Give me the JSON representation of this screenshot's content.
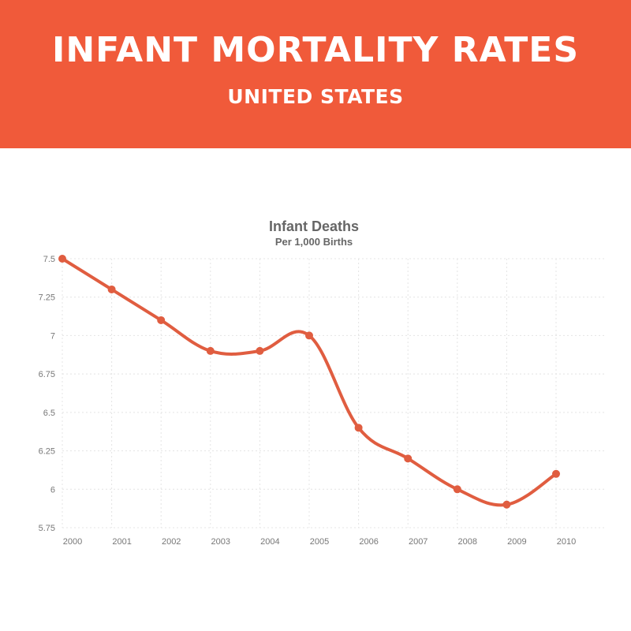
{
  "header": {
    "title": "INFANT MORTALITY RATES",
    "subtitle": "UNITED STATES",
    "background": "#f05a3a"
  },
  "chart_data": {
    "type": "line",
    "title": "Infant Deaths",
    "subtitle": "Per 1,000 Births",
    "xlabel": "",
    "ylabel": "",
    "categories": [
      "2000",
      "2001",
      "2002",
      "2003",
      "2004",
      "2005",
      "2006",
      "2007",
      "2008",
      "2009",
      "2010"
    ],
    "series": [
      {
        "values": [
          7.5,
          7.3,
          7.1,
          6.9,
          6.9,
          7.0,
          6.4,
          6.2,
          6.0,
          5.9,
          6.1
        ],
        "color": "#e05d40"
      }
    ],
    "ylim": [
      5.75,
      7.5
    ],
    "yticks": [
      "7.5",
      "7.25",
      "7",
      "6.75",
      "6.5",
      "6.25",
      "6",
      "5.75"
    ],
    "grid": true,
    "legend": "none"
  }
}
